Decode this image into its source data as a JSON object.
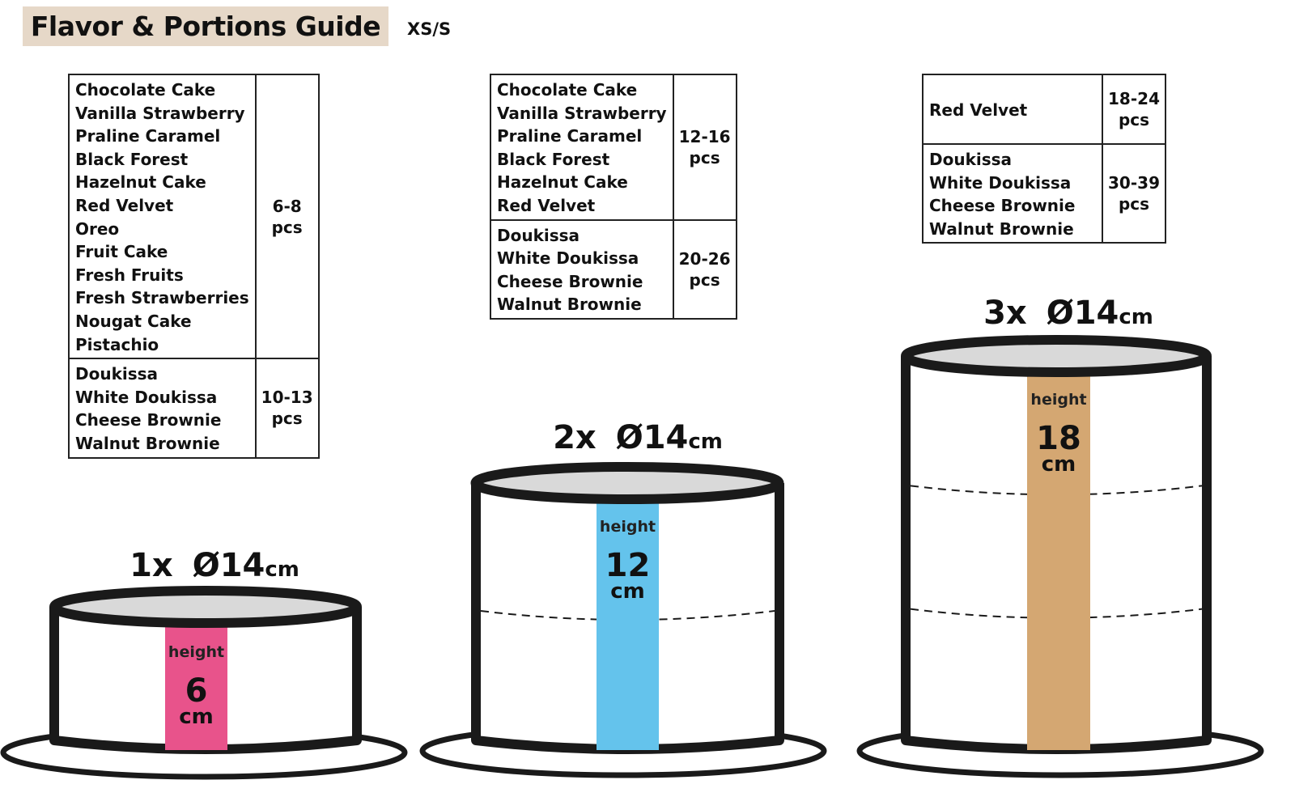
{
  "header": {
    "title": "Flavor & Portions Guide",
    "size": "XS/S"
  },
  "tables": [
    {
      "rows": [
        {
          "flavors": [
            "Chocolate Cake",
            "Vanilla Strawberry",
            "Praline Caramel",
            "Black Forest",
            "Hazelnut Cake",
            "Red Velvet",
            "Oreo",
            "Fruit Cake",
            "Fresh Fruits",
            "Fresh Strawberries",
            "Nougat Cake",
            "Pistachio"
          ],
          "portions": "6-8",
          "unit": "pcs"
        },
        {
          "flavors": [
            "Doukissa",
            "White Doukissa",
            "Cheese Brownie",
            "Walnut Brownie"
          ],
          "portions": "10-13",
          "unit": "pcs"
        }
      ]
    },
    {
      "rows": [
        {
          "flavors": [
            "Chocolate Cake",
            "Vanilla Strawberry",
            "Praline Caramel",
            "Black Forest",
            "Hazelnut Cake",
            "Red Velvet"
          ],
          "portions": "12-16",
          "unit": "pcs"
        },
        {
          "flavors": [
            "Doukissa",
            "White Doukissa",
            "Cheese Brownie",
            "Walnut Brownie"
          ],
          "portions": "20-26",
          "unit": "pcs"
        }
      ]
    },
    {
      "rows": [
        {
          "flavors": [
            "Red Velvet"
          ],
          "portions": "18-24",
          "unit": "pcs"
        },
        {
          "flavors": [
            "Doukissa",
            "White Doukissa",
            "Cheese Brownie",
            "Walnut Brownie"
          ],
          "portions": "30-39",
          "unit": "pcs"
        }
      ]
    }
  ],
  "cakes": [
    {
      "count": "1x",
      "diameter": "Ø14",
      "diameter_unit": "cm",
      "height_label": "height",
      "height": "6",
      "height_unit": "cm",
      "color": "#e8538b",
      "layers": 1
    },
    {
      "count": "2x",
      "diameter": "Ø14",
      "diameter_unit": "cm",
      "height_label": "height",
      "height": "12",
      "height_unit": "cm",
      "color": "#64c3ec",
      "layers": 2
    },
    {
      "count": "3x",
      "diameter": "Ø14",
      "diameter_unit": "cm",
      "height_label": "height",
      "height": "18",
      "height_unit": "cm",
      "color": "#d4a772",
      "layers": 3
    }
  ],
  "colors": {
    "title_bg": "#e6d8c8",
    "outline": "#1a1a1a",
    "cake_top": "#d9d9d9"
  }
}
